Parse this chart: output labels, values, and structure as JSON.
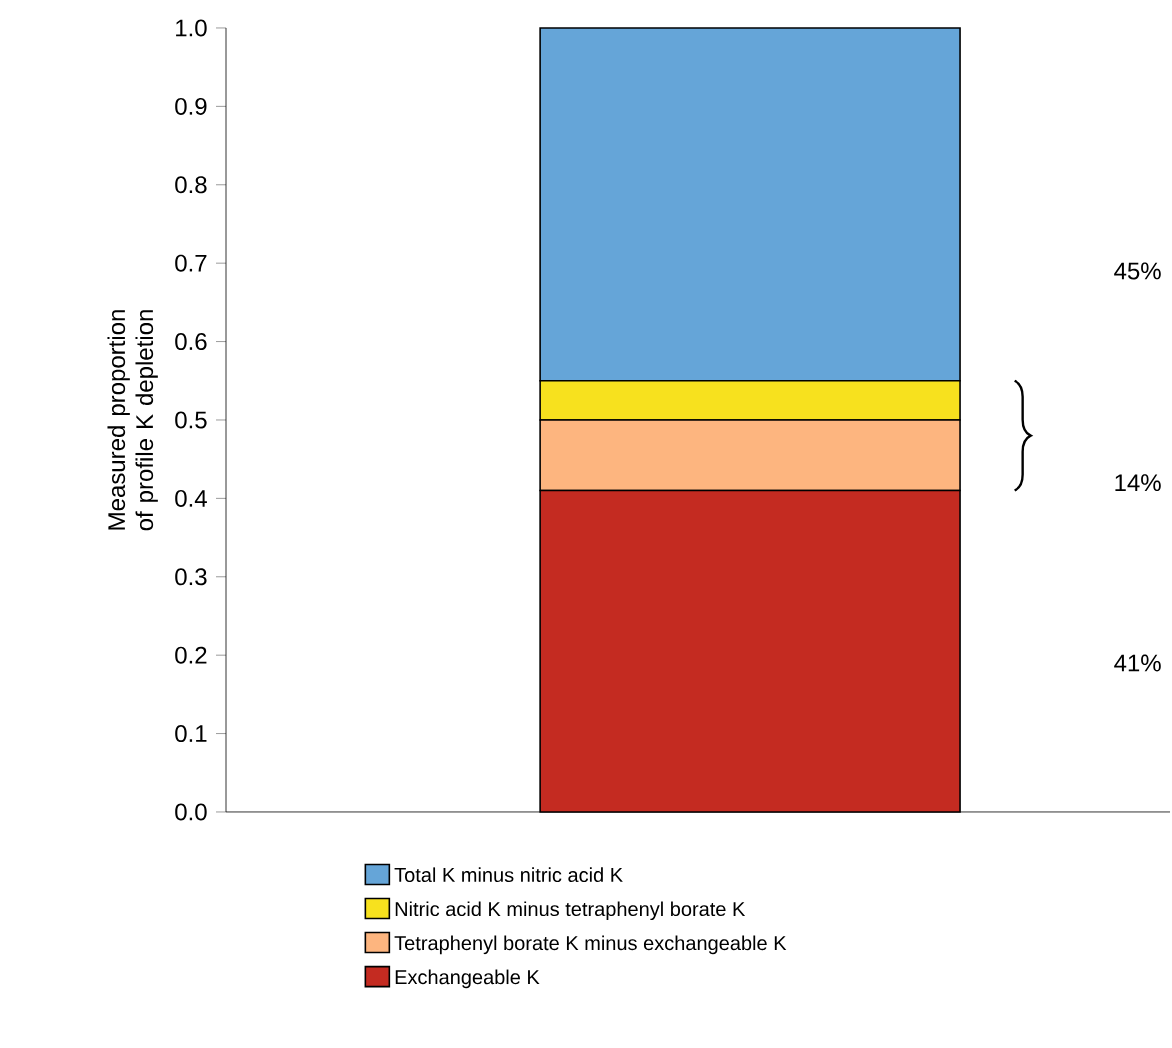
{
  "chart_data": {
    "type": "bar",
    "stacked": true,
    "ylabel": "Measured proportion of profile K depletion",
    "categories": [
      null
    ],
    "series": [
      {
        "name": "Exchangeable K",
        "color": "#c42b21",
        "values": [
          0.41
        ]
      },
      {
        "name": "Tetraphenyl borate K minus exchangeable K",
        "color": "#fdb57f",
        "values": [
          0.09
        ]
      },
      {
        "name": "Nitric acid K minus tetraphenyl borate K",
        "color": "#f7e11e",
        "values": [
          0.05
        ]
      },
      {
        "name": "Total K minus nitric acid K",
        "color": "#65a5d8",
        "values": [
          0.45
        ]
      }
    ],
    "ylim": [
      0,
      1.0
    ],
    "yticks": [
      {
        "value": 0,
        "label": "0.0"
      },
      0.1,
      0.2,
      0.3,
      0.4,
      0.5,
      0.6,
      0.7,
      0.8,
      0.9,
      {
        "value": 1,
        "label": "1.0"
      }
    ],
    "legend": "bottom",
    "annotations": [
      "45%",
      "14%",
      "41%"
    ]
  }
}
